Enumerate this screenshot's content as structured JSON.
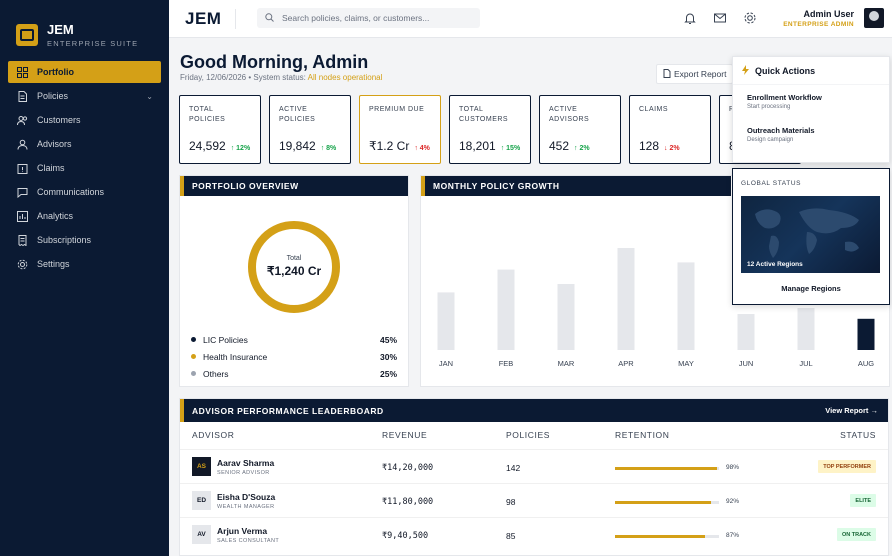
{
  "brand": {
    "name": "JEM",
    "subtitle": "ENTERPRISE SUITE"
  },
  "sidebar": {
    "items": [
      {
        "label": "Portfolio",
        "icon": "grid-icon",
        "active": true
      },
      {
        "label": "Policies",
        "icon": "document-icon",
        "has_chevron": true
      },
      {
        "label": "Customers",
        "icon": "users-icon"
      },
      {
        "label": "Advisors",
        "icon": "advisor-icon"
      },
      {
        "label": "Claims",
        "icon": "claims-icon"
      },
      {
        "label": "Communications",
        "icon": "chat-icon"
      },
      {
        "label": "Analytics",
        "icon": "chart-icon"
      },
      {
        "label": "Subscriptions",
        "icon": "receipt-icon"
      },
      {
        "label": "Settings",
        "icon": "gear-icon"
      }
    ]
  },
  "topbar": {
    "logo": "JEM",
    "search_placeholder": "Search policies, claims, or customers...",
    "icons": [
      "bell-icon",
      "mail-icon",
      "gear-icon"
    ],
    "user": {
      "name": "Admin User",
      "role": "ENTERPRISE ADMIN"
    }
  },
  "header": {
    "greeting": "Good Morning, Admin",
    "date": "Friday, 12/06/2026",
    "separator": "•",
    "status_prefix": "System status:",
    "status_value": "All nodes operational",
    "export_label": "Export Report"
  },
  "kpis": [
    {
      "label": "TOTAL POLICIES",
      "value": "24,592",
      "delta": "12%",
      "direction": "up"
    },
    {
      "label": "ACTIVE POLICIES",
      "value": "19,842",
      "delta": "8%",
      "direction": "up"
    },
    {
      "label": "PREMIUM DUE",
      "value": "₹1.2 Cr",
      "delta": "4%",
      "direction": "up-red",
      "highlight": true
    },
    {
      "label": "TOTAL CUSTOMERS",
      "value": "18,201",
      "delta": "15%",
      "direction": "up"
    },
    {
      "label": "ACTIVE ADVISORS",
      "value": "452",
      "delta": "2%",
      "direction": "up"
    },
    {
      "label": "CLAIMS",
      "value": "128",
      "delta": "2%",
      "direction": "down"
    },
    {
      "label": "R",
      "value": "8",
      "delta": "",
      "direction": ""
    }
  ],
  "portfolio": {
    "title": "PORTFOLIO OVERVIEW",
    "donut_label": "Total",
    "donut_value": "₹1,240 Cr",
    "legend": [
      {
        "name": "LIC Policies",
        "pct": "45%",
        "color": "#0b1a33"
      },
      {
        "name": "Health Insurance",
        "pct": "30%",
        "color": "#d4a017"
      },
      {
        "name": "Others",
        "pct": "25%",
        "color": "#9ca3af"
      }
    ]
  },
  "quick_actions": {
    "title": "Quick Actions",
    "items": [
      {
        "title": "Enrollment Workflow",
        "subtitle": "Start processing"
      },
      {
        "title": "Outreach Materials",
        "subtitle": "Design campaign"
      }
    ]
  },
  "global_status": {
    "title": "GLOBAL STATUS",
    "map_label": "12 Active Regions",
    "button": "Manage Regions"
  },
  "chart_data": {
    "type": "bar",
    "title": "MONTHLY POLICY GROWTH",
    "categories": [
      "JAN",
      "FEB",
      "MAR",
      "APR",
      "MAY",
      "JUN",
      "JUL",
      "AUG"
    ],
    "values": [
      48,
      67,
      55,
      85,
      73,
      30,
      35,
      26
    ],
    "highlight_index": 7,
    "ylim": [
      0,
      100
    ],
    "bar_color": "#e5e7eb",
    "highlight_color": "#0b1a33"
  },
  "leaderboard": {
    "title": "ADVISOR PERFORMANCE LEADERBOARD",
    "view_report": "View Report →",
    "columns": {
      "advisor": "ADVISOR",
      "revenue": "REVENUE",
      "policies": "POLICIES",
      "retention": "RETENTION",
      "status": "STATUS"
    },
    "rows": [
      {
        "initials": "AS",
        "name": "Aarav Sharma",
        "title": "SENIOR ADVISOR",
        "revenue": "₹14,20,000",
        "policies": "142",
        "retention": 98,
        "retention_label": "98%",
        "status": "TOP PERFORMER",
        "avatar_style": "dark"
      },
      {
        "initials": "ED",
        "name": "Eisha D'Souza",
        "title": "WEALTH MANAGER",
        "revenue": "₹11,80,000",
        "policies": "98",
        "retention": 92,
        "retention_label": "92%",
        "status": "ELITE",
        "avatar_style": "light"
      },
      {
        "initials": "AV",
        "name": "Arjun Verma",
        "title": "SALES CONSULTANT",
        "revenue": "₹9,40,500",
        "policies": "85",
        "retention": 87,
        "retention_label": "87%",
        "status": "ON TRACK",
        "avatar_style": "light"
      }
    ]
  }
}
